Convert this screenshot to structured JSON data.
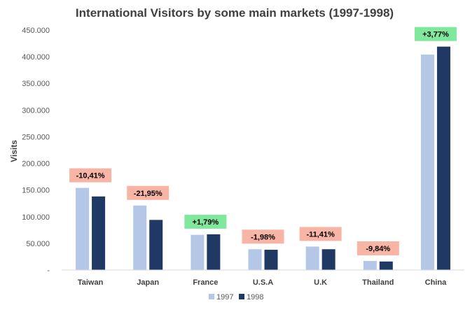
{
  "chart_data": {
    "type": "bar",
    "title": "International Visitors by some main markets (1997-1998)",
    "ylabel": "Visits",
    "xlabel": "",
    "ylim": [
      0,
      450000
    ],
    "yticks": [
      0,
      50000,
      100000,
      150000,
      200000,
      250000,
      300000,
      350000,
      400000,
      450000
    ],
    "ytick_labels": [
      "-",
      "50.000",
      "100.000",
      "150.000",
      "200.000",
      "250.000",
      "300.000",
      "350.000",
      "400.000",
      "450.000"
    ],
    "categories": [
      "Taiwan",
      "Japan",
      "France",
      "U.S.A",
      "U.K",
      "Thailand",
      "China"
    ],
    "series": [
      {
        "name": "1997",
        "color": "#b4c7e7",
        "values": [
          154000,
          121000,
          66000,
          39000,
          44000,
          17000,
          404000
        ]
      },
      {
        "name": "1998",
        "color": "#203864",
        "values": [
          138000,
          94000,
          67000,
          38000,
          39000,
          16000,
          419000
        ]
      }
    ],
    "annotations": [
      {
        "text": "-10,41%",
        "color": "#f8b4a4"
      },
      {
        "text": "-21,95%",
        "color": "#f8b4a4"
      },
      {
        "text": "+1,79%",
        "color": "#80e89c"
      },
      {
        "text": "-1,98%",
        "color": "#f8b4a4"
      },
      {
        "text": "-11,41%",
        "color": "#f8b4a4"
      },
      {
        "text": "-9,84%",
        "color": "#f8b4a4"
      },
      {
        "text": "+3,77%",
        "color": "#80e89c"
      }
    ],
    "grid": false,
    "legend_position": "bottom"
  }
}
